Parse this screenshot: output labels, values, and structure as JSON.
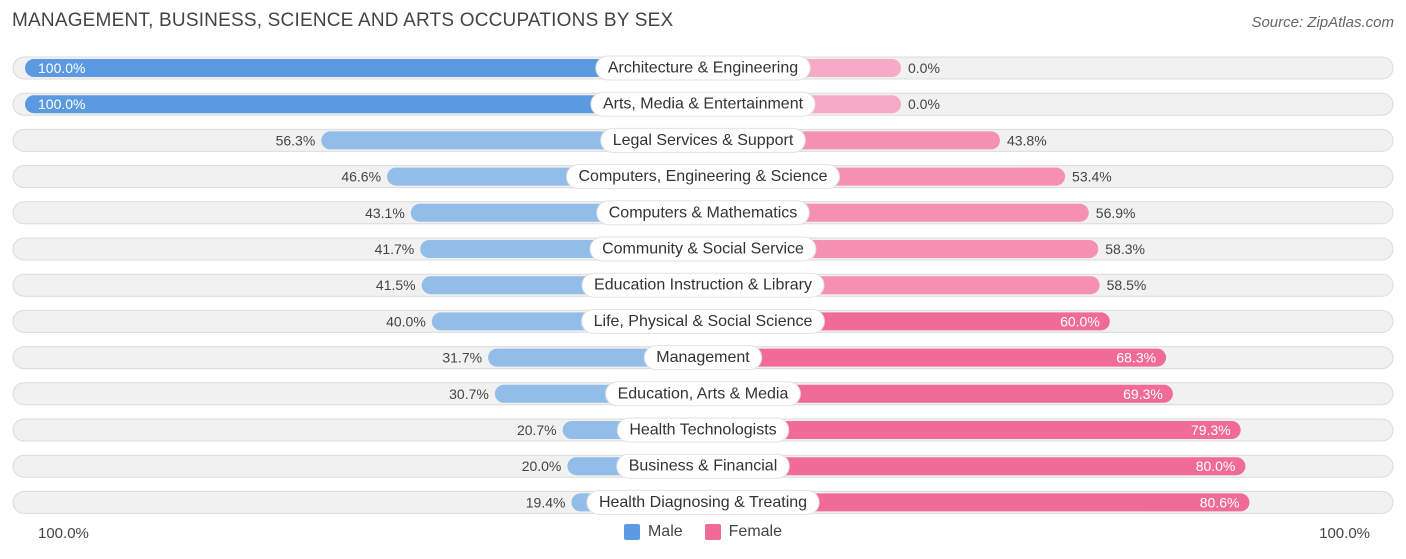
{
  "title": "MANAGEMENT, BUSINESS, SCIENCE AND ARTS OCCUPATIONS BY SEX",
  "source": "Source: ZipAtlas.com",
  "axis": {
    "left_label": "100.0%",
    "right_label": "100.0%"
  },
  "legend": {
    "male": "Male",
    "female": "Female"
  },
  "colors": {
    "male_strong": "#5b9ae0",
    "male": "#93bde9",
    "female_strong": "#f06b98",
    "female": "#f590b3",
    "female_light": "#f7aac5",
    "row_bg": "#f1f1f1",
    "row_border": "#dcdcdc"
  },
  "chart_data": {
    "type": "bar",
    "orientation": "horizontal-diverging",
    "title": "MANAGEMENT, BUSINESS, SCIENCE AND ARTS OCCUPATIONS BY SEX",
    "xlim": [
      -100,
      100
    ],
    "categories": [
      "Architecture & Engineering",
      "Arts, Media & Entertainment",
      "Legal Services & Support",
      "Computers, Engineering & Science",
      "Computers & Mathematics",
      "Community & Social Service",
      "Education Instruction & Library",
      "Life, Physical & Social Science",
      "Management",
      "Education, Arts & Media",
      "Health Technologists",
      "Business & Financial",
      "Health Diagnosing & Treating"
    ],
    "series": [
      {
        "name": "Male",
        "values": [
          100.0,
          100.0,
          56.3,
          46.6,
          43.1,
          41.7,
          41.5,
          40.0,
          31.7,
          30.7,
          20.7,
          20.0,
          19.4
        ],
        "labels": [
          "100.0%",
          "100.0%",
          "56.3%",
          "46.6%",
          "43.1%",
          "41.7%",
          "41.5%",
          "40.0%",
          "31.7%",
          "30.7%",
          "20.7%",
          "20.0%",
          "19.4%"
        ]
      },
      {
        "name": "Female",
        "values": [
          0.0,
          0.0,
          43.8,
          53.4,
          56.9,
          58.3,
          58.5,
          60.0,
          68.3,
          69.3,
          79.3,
          80.0,
          80.6
        ],
        "labels": [
          "0.0%",
          "0.0%",
          "43.8%",
          "53.4%",
          "56.9%",
          "58.3%",
          "58.5%",
          "60.0%",
          "68.3%",
          "69.3%",
          "79.3%",
          "80.0%",
          "80.6%"
        ]
      }
    ],
    "legend_position": "bottom-center"
  }
}
